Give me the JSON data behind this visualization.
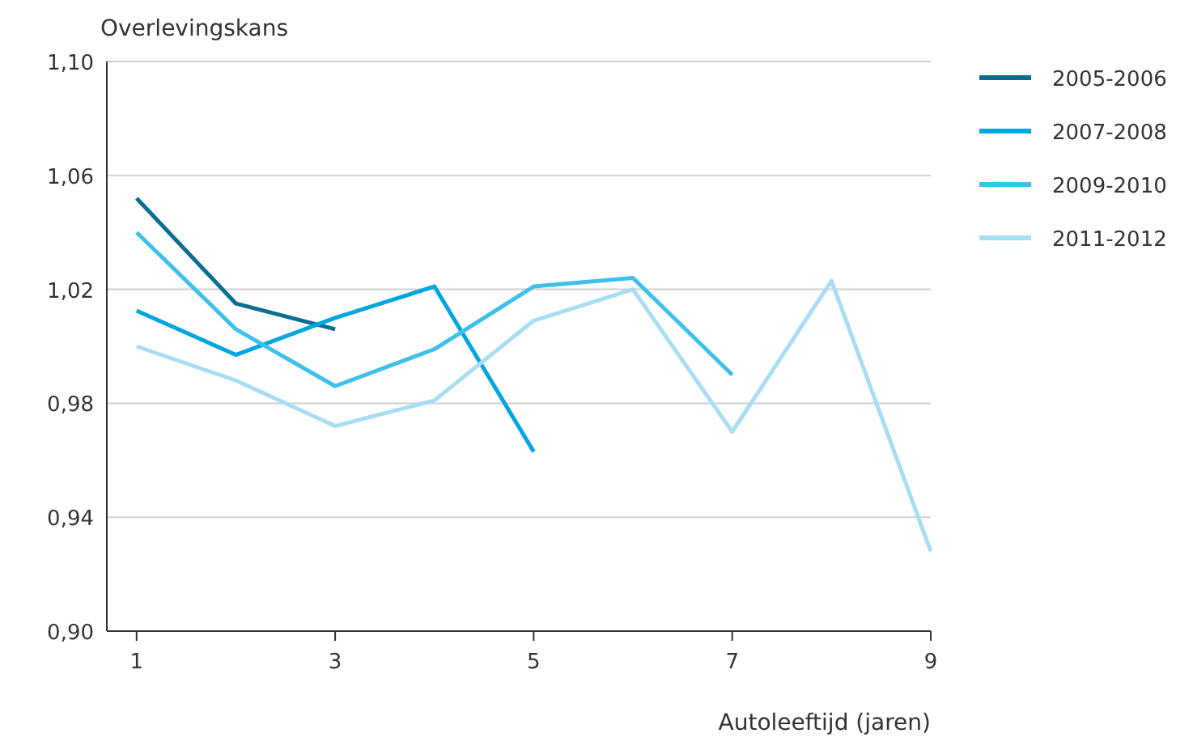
{
  "chart_data": {
    "type": "line",
    "ylabel": "Overlevingskans",
    "xlabel": "Autoleeftijd (jaren)",
    "xlim": [
      0.7,
      9
    ],
    "xticks": [
      1,
      3,
      5,
      7,
      9
    ],
    "ylim": [
      0.9,
      1.1
    ],
    "yticks": [
      {
        "value": 0.9,
        "label": "0,90"
      },
      {
        "value": 0.94,
        "label": "0,94"
      },
      {
        "value": 0.98,
        "label": "0,98"
      },
      {
        "value": 1.02,
        "label": "1,02"
      },
      {
        "value": 1.06,
        "label": "1,06"
      },
      {
        "value": 1.1,
        "label": "1,10"
      }
    ],
    "grid": "y",
    "legend": "top right",
    "marker": "none",
    "line_style": "solid",
    "x": [
      1,
      2,
      3,
      4,
      5,
      6,
      7,
      8,
      9
    ],
    "series": [
      {
        "name": "2005-2006",
        "color": "#0a6d91",
        "values": [
          1.052,
          1.015,
          1.006,
          null,
          null,
          null,
          null,
          null,
          null
        ]
      },
      {
        "name": "2007-2008",
        "color": "#00a6e0",
        "values": [
          1.0125,
          0.997,
          1.01,
          1.021,
          0.963,
          null,
          null,
          null,
          null
        ]
      },
      {
        "name": "2009-2010",
        "color": "#3fc0ec",
        "values": [
          1.04,
          1.006,
          0.986,
          0.999,
          1.021,
          1.024,
          0.99,
          null,
          null
        ]
      },
      {
        "name": "2011-2012",
        "color": "#a8def3",
        "values": [
          1.0,
          0.988,
          0.972,
          0.981,
          1.009,
          1.02,
          0.97,
          1.023,
          0.928
        ]
      }
    ]
  }
}
